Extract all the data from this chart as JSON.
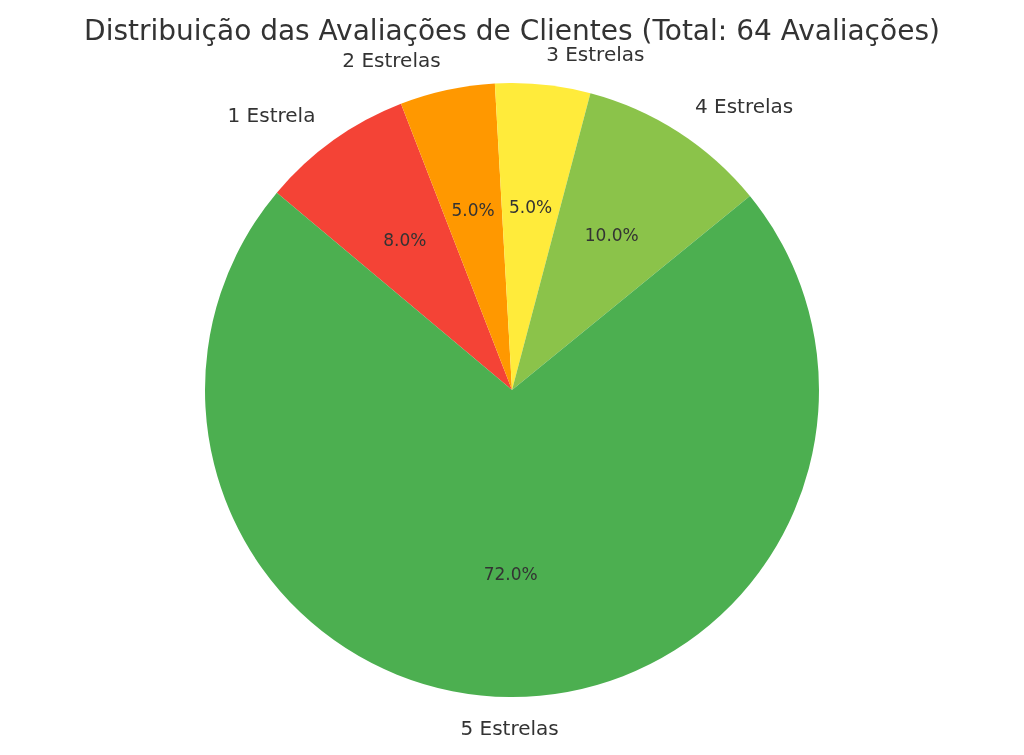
{
  "chart_data": {
    "type": "pie",
    "title": "Distribuição das Avaliações de Clientes (Total: 64 Avaliações)",
    "categories": [
      "1 Estrela",
      "2 Estrelas",
      "3 Estrelas",
      "4 Estrelas",
      "5 Estrelas"
    ],
    "values": [
      8,
      5,
      5,
      10,
      72
    ],
    "colors": [
      "#f44336",
      "#ff9800",
      "#ffeb3b",
      "#8bc34a",
      "#4caf50"
    ],
    "value_labels": [
      "8.0%",
      "5.0%",
      "5.0%",
      "10.0%",
      "72.0%"
    ],
    "legend": false
  }
}
